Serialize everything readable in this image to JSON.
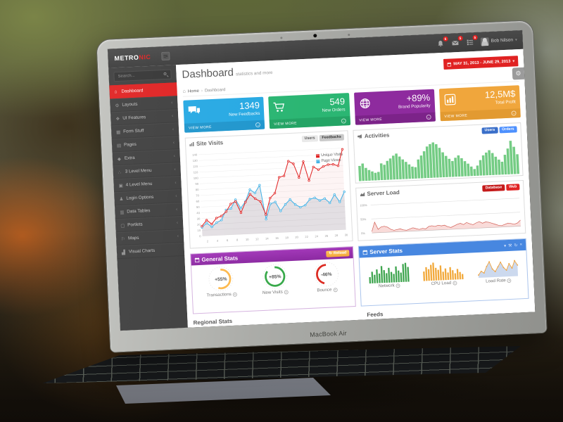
{
  "scene": {
    "device_label": "MacBook Air"
  },
  "colors": {
    "brand_red": "#e02222",
    "topbar": "#424242",
    "sidebar": "#3f3f3f",
    "card_blue": "#27a9e3",
    "card_green": "#2bb673",
    "card_purple": "#8e2b9e",
    "card_yellow": "#f0a63c",
    "panel_purple": "#9a30ae",
    "panel_blue": "#4787e0",
    "chart_red": "#e02222",
    "chart_blue": "#3fb1e6",
    "bars_green": "#74cc84",
    "knob_orange": "#fdb94d",
    "knob_green": "#38a94a",
    "knob_red": "#dc2b22"
  },
  "glyphs": {
    "home": "⌂",
    "chevron_down": "▾",
    "breadcrumb_sep": "›",
    "menu_chevron": "‹",
    "arrow": "→",
    "gear": "⚙",
    "circle_chevron": "▾"
  },
  "topbar": {
    "logo": {
      "primary": "METRO",
      "accent": "NIC"
    },
    "notifications": [
      {
        "icon": "bell-icon",
        "count": "6"
      },
      {
        "icon": "envelope-icon",
        "count": "5"
      },
      {
        "icon": "tasks-icon",
        "count": "5"
      }
    ],
    "user": {
      "name": "Bob Nilson"
    }
  },
  "sidebar": {
    "search_placeholder": "Search...",
    "items": [
      {
        "icon": "home-icon",
        "glyph": "⌂",
        "label": "Dashboard",
        "active": true,
        "chevron": false
      },
      {
        "icon": "cogs-icon",
        "glyph": "⚙",
        "label": "Layouts",
        "active": false,
        "chevron": true
      },
      {
        "icon": "bookmark-icon",
        "glyph": "❖",
        "label": "UI Features",
        "active": false,
        "chevron": true
      },
      {
        "icon": "form-icon",
        "glyph": "▦",
        "label": "Form Stuff",
        "active": false,
        "chevron": true
      },
      {
        "icon": "briefcase-icon",
        "glyph": "▤",
        "label": "Pages",
        "active": false,
        "chevron": true
      },
      {
        "icon": "gift-icon",
        "glyph": "◆",
        "label": "Extra",
        "active": false,
        "chevron": true
      },
      {
        "icon": "sitemap-icon",
        "glyph": "∴",
        "label": "3 Level Menu",
        "active": false,
        "chevron": true
      },
      {
        "icon": "folder-icon",
        "glyph": "▣",
        "label": "4 Level Menu",
        "active": false,
        "chevron": true
      },
      {
        "icon": "user-icon",
        "glyph": "♟",
        "label": "Login Options",
        "active": false,
        "chevron": true
      },
      {
        "icon": "table-icon",
        "glyph": "▥",
        "label": "Data Tables",
        "active": false,
        "chevron": true
      },
      {
        "icon": "portlet-icon",
        "glyph": "▢",
        "label": "Portlets",
        "active": false,
        "chevron": true
      },
      {
        "icon": "map-marker-icon",
        "glyph": "⚐",
        "label": "Maps",
        "active": false,
        "chevron": true
      },
      {
        "icon": "chart-icon",
        "glyph": "▟",
        "label": "Visual Charts",
        "active": false,
        "chevron": false
      }
    ]
  },
  "page": {
    "title": "Dashboard",
    "subtitle": "statistics and more",
    "breadcrumb": [
      "Home",
      "Dashboard"
    ],
    "date_range": "MAY 31, 2013 - JUNE 29, 2013"
  },
  "stat_cards": [
    {
      "icon": "comments-icon",
      "value": "1349",
      "label": "New Feedbacks",
      "action": "VIEW MORE",
      "color": "#27a9e3",
      "footer_color": "#2096cd"
    },
    {
      "icon": "cart-icon",
      "value": "549",
      "label": "New Orders",
      "action": "VIEW MORE",
      "color": "#2bb673",
      "footer_color": "#24a465"
    },
    {
      "icon": "globe-icon",
      "value": "+89%",
      "label": "Brand Popularity",
      "action": "VIEW MORE",
      "color": "#8e2b9e",
      "footer_color": "#7c2389"
    },
    {
      "icon": "bar-chart-icon",
      "value": "12,5M$",
      "label": "Total Profit",
      "action": "VIEW MORE",
      "color": "#f0a63c",
      "footer_color": "#e29a31"
    }
  ],
  "site_visits": {
    "title": "Site Visits",
    "icon": "chart-icon",
    "buttons": [
      {
        "label": "Users",
        "color": "#e9e9e9",
        "text_color": "#555555",
        "active": false
      },
      {
        "label": "Feedbacks",
        "color": "#c9c9c9",
        "text_color": "#333333",
        "active": true
      }
    ],
    "chart_data": {
      "type": "line",
      "x": [
        1,
        2,
        3,
        4,
        5,
        6,
        7,
        8,
        9,
        10,
        11,
        12,
        13,
        14,
        15,
        16,
        17,
        18,
        19,
        20,
        21,
        22,
        23,
        24,
        25,
        26,
        27,
        28,
        29,
        30
      ],
      "xticks": [
        2,
        4,
        6,
        8,
        10,
        12,
        14,
        16,
        18,
        20,
        22,
        24,
        26,
        28,
        30
      ],
      "ylim": [
        0,
        140
      ],
      "ytick_step": 10,
      "series": [
        {
          "name": "Unique Visits",
          "color": "#e02222",
          "fill": "rgba(224,34,34,0.05)",
          "values": [
            17,
            27,
            20,
            30,
            33,
            40,
            53,
            57,
            37,
            55,
            68,
            60,
            55,
            32,
            60,
            68,
            95,
            97,
            122,
            117,
            93,
            120,
            87,
            110,
            105,
            110,
            113,
            113,
            110,
            138
          ]
        },
        {
          "name": "Page Views",
          "color": "#3fb1e6",
          "fill": "rgba(110,130,150,0.18)",
          "values": [
            15,
            22,
            15,
            22,
            26,
            43,
            45,
            60,
            45,
            56,
            76,
            70,
            83,
            24,
            50,
            53,
            37,
            48,
            56,
            47,
            42,
            45,
            55,
            57,
            52,
            55,
            47,
            61,
            48,
            65
          ]
        }
      ]
    }
  },
  "activities": {
    "title": "Activities",
    "icon": "bullhorn-icon",
    "buttons": [
      {
        "label": "Users",
        "color": "#3a6fc9",
        "text_color": "#ffffff",
        "active": true
      },
      {
        "label": "Orders",
        "color": "#4d90fe",
        "text_color": "#ffffff",
        "active": false
      }
    ],
    "chart_data": {
      "type": "bar",
      "color": "#74cc84",
      "values": [
        40,
        46,
        34,
        28,
        24,
        20,
        22,
        44,
        40,
        50,
        56,
        63,
        68,
        60,
        52,
        45,
        38,
        32,
        30,
        50,
        60,
        71,
        83,
        89,
        93,
        88,
        78,
        66,
        56,
        48,
        42,
        50,
        56,
        48,
        40,
        33,
        25,
        18,
        27,
        41,
        53,
        60,
        66,
        58,
        48,
        40,
        34,
        52,
        68,
        88,
        72,
        52
      ]
    }
  },
  "server_load": {
    "title": "Server Load",
    "icon": "area-chart-icon",
    "buttons": [
      {
        "label": "Database",
        "color": "#c51b1b",
        "text_color": "#ffffff",
        "active": true
      },
      {
        "label": "Web",
        "color": "#e02222",
        "text_color": "#ffffff",
        "active": false
      }
    ],
    "chart_data": {
      "type": "area",
      "color": "#d05a50",
      "fill": "rgba(229,90,80,0.22)",
      "yticks": [
        "100%",
        "50%",
        "0%"
      ],
      "values": [
        5,
        38,
        12,
        20,
        22,
        18,
        10,
        6,
        8,
        10,
        6,
        4,
        8,
        12,
        8,
        5,
        8,
        6,
        14,
        16,
        13,
        17,
        14,
        16,
        10,
        7,
        12,
        17,
        20,
        15,
        22,
        17,
        13,
        19,
        23,
        17,
        21,
        19,
        15,
        11,
        7,
        5,
        9,
        13,
        11,
        8,
        12,
        22
      ]
    }
  },
  "general_stats": {
    "title": "General Stats",
    "icon": "calendar-icon",
    "reload_label": "Reload",
    "reload_icon_glyph": "↻",
    "knobs": [
      {
        "value": "+55%",
        "percent": 55,
        "direction": 1,
        "label": "Transactions",
        "color": "#fdb94d"
      },
      {
        "value": "+85%",
        "percent": 85,
        "direction": 1,
        "label": "New Visits",
        "color": "#38a94a"
      },
      {
        "value": "-46%",
        "percent": 46,
        "direction": -1,
        "label": "Bounce",
        "color": "#dc2b22"
      }
    ]
  },
  "server_stats": {
    "title": "Server Stats",
    "icon": "calendar-icon",
    "tools": [
      {
        "icon": "chevron-down-icon",
        "glyph": "▾"
      },
      {
        "icon": "wrench-icon",
        "glyph": "⚒"
      },
      {
        "icon": "refresh-icon",
        "glyph": "↻"
      },
      {
        "icon": "close-icon",
        "glyph": "×"
      }
    ],
    "charts": [
      {
        "label": "Network",
        "type": "bar",
        "color": "#3fa54f",
        "values": [
          30,
          55,
          40,
          65,
          45,
          80,
          60,
          45,
          70,
          50,
          40,
          75,
          55,
          45,
          85,
          90,
          70
        ]
      },
      {
        "label": "CPU Load",
        "type": "bar",
        "color": "#f2a93b",
        "values": [
          45,
          65,
          55,
          75,
          85,
          60,
          50,
          70,
          40,
          55,
          35,
          60,
          45,
          30,
          50,
          35,
          25
        ]
      },
      {
        "label": "Load Rate",
        "type": "area",
        "color": "#ccd9ee",
        "line_color": "#f0a23c",
        "values": [
          15,
          35,
          25,
          60,
          85,
          45,
          30,
          55,
          80,
          50,
          35,
          70,
          45,
          85,
          60
        ]
      }
    ]
  },
  "clipped_sections": {
    "left": "Regional Stats",
    "right": "Feeds"
  }
}
